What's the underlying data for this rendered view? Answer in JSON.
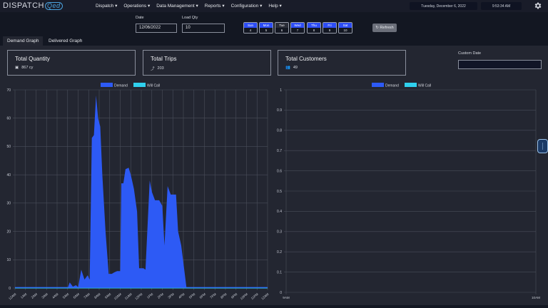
{
  "app": {
    "logo_text": "DISPATCH",
    "logo_mark": "Qed"
  },
  "menu": [
    {
      "label": "Dispatch ▾"
    },
    {
      "label": "Operations ▾"
    },
    {
      "label": "Data Management ▾"
    },
    {
      "label": "Reports ▾"
    },
    {
      "label": "Configuration ▾"
    },
    {
      "label": "Help ▾"
    }
  ],
  "header": {
    "date": "Tuesday, December 6, 2022",
    "time": "9:53:34 AM",
    "settings_icon": "gear-icon"
  },
  "controls": {
    "date_label": "Date",
    "date_value": "12/06/2022",
    "load_qty_label": "Load Qty",
    "load_qty_value": "10",
    "days": [
      {
        "name": "Sun",
        "num": "4",
        "active": true
      },
      {
        "name": "Mon",
        "num": "5",
        "active": true
      },
      {
        "name": "Tue",
        "num": "6",
        "active": false
      },
      {
        "name": "Wed",
        "num": "7",
        "active": true
      },
      {
        "name": "Thu",
        "num": "8",
        "active": true
      },
      {
        "name": "Fri",
        "num": "9",
        "active": true
      },
      {
        "name": "Sat",
        "num": "10",
        "active": true
      }
    ],
    "refresh_label": "↻ Refresh"
  },
  "tabs": [
    {
      "label": "Demand Graph",
      "active": true
    },
    {
      "label": "Delivered Graph",
      "active": false
    }
  ],
  "cards": [
    {
      "title": "Total Quantity",
      "icon": "truck-icon",
      "icon_glyph": "▣",
      "value": "867 cy"
    },
    {
      "title": "Total Trips",
      "icon": "route-icon",
      "icon_glyph": "⤴",
      "value": "203"
    },
    {
      "title": "Total Customers",
      "icon": "users-icon",
      "icon_glyph": "👥",
      "value": "49"
    }
  ],
  "custom_date": {
    "label": "Custom Date",
    "value": ""
  },
  "colors": {
    "demand": "#2d5af5",
    "will_call": "#2fd0ee",
    "grid": "#4a4e5a",
    "panel": "#232631"
  },
  "chart_data": [
    {
      "type": "area",
      "title": "",
      "legend": [
        "Demand",
        "Will Call"
      ],
      "legend_position": "top",
      "xlabel": "",
      "ylabel": "",
      "ylim": [
        0,
        70
      ],
      "yticks": [
        0,
        10,
        20,
        30,
        40,
        50,
        60,
        70
      ],
      "categories": [
        "12AM",
        "1AM",
        "2AM",
        "3AM",
        "4AM",
        "5AM",
        "6AM",
        "7AM",
        "8AM",
        "9AM",
        "10AM",
        "11AM",
        "12PM",
        "1PM",
        "2PM",
        "3PM",
        "4PM",
        "5PM",
        "6PM",
        "7PM",
        "8PM",
        "9PM",
        "10PM",
        "11PM",
        "12AM"
      ],
      "grid": true,
      "series": [
        {
          "name": "Demand",
          "points": [
            [
              0,
              0
            ],
            [
              5,
              0
            ],
            [
              5.2,
              2
            ],
            [
              5.5,
              0.5
            ],
            [
              5.8,
              1
            ],
            [
              6,
              0.3
            ],
            [
              6.3,
              6.5
            ],
            [
              6.6,
              3
            ],
            [
              6.9,
              4.5
            ],
            [
              7.1,
              3
            ],
            [
              7.3,
              53
            ],
            [
              7.5,
              54
            ],
            [
              7.7,
              68
            ],
            [
              7.9,
              60
            ],
            [
              8.1,
              57
            ],
            [
              8.3,
              40
            ],
            [
              8.6,
              20
            ],
            [
              8.9,
              5
            ],
            [
              9.2,
              5
            ],
            [
              9.4,
              5.5
            ],
            [
              9.7,
              6
            ],
            [
              10,
              6
            ],
            [
              10.1,
              37
            ],
            [
              10.3,
              37
            ],
            [
              10.5,
              42
            ],
            [
              10.8,
              42.5
            ],
            [
              11,
              40
            ],
            [
              11.3,
              35
            ],
            [
              11.6,
              27
            ],
            [
              11.8,
              7
            ],
            [
              12.2,
              7
            ],
            [
              12.4,
              6.5
            ],
            [
              12.8,
              38
            ],
            [
              13,
              34
            ],
            [
              13.3,
              31
            ],
            [
              13.7,
              31
            ],
            [
              14,
              29
            ],
            [
              14.2,
              15
            ],
            [
              14.5,
              36
            ],
            [
              14.8,
              33
            ],
            [
              15.3,
              33
            ],
            [
              15.5,
              20
            ],
            [
              15.8,
              15
            ],
            [
              16.3,
              0
            ],
            [
              24,
              0
            ]
          ]
        },
        {
          "name": "Will Call",
          "points": [
            [
              0,
              0
            ],
            [
              24,
              0
            ]
          ]
        }
      ]
    },
    {
      "type": "area",
      "title": "",
      "legend": [
        "Demand",
        "Will Call"
      ],
      "legend_position": "top",
      "ylim": [
        0,
        1.0
      ],
      "yticks": [
        0,
        0.1,
        0.2,
        0.3,
        0.4,
        0.5,
        0.6,
        0.7,
        0.8,
        0.9,
        1.0
      ],
      "categories": [
        "9AM",
        "10AM"
      ],
      "grid": true,
      "series": [
        {
          "name": "Demand",
          "values": []
        },
        {
          "name": "Will Call",
          "values": []
        }
      ]
    }
  ]
}
